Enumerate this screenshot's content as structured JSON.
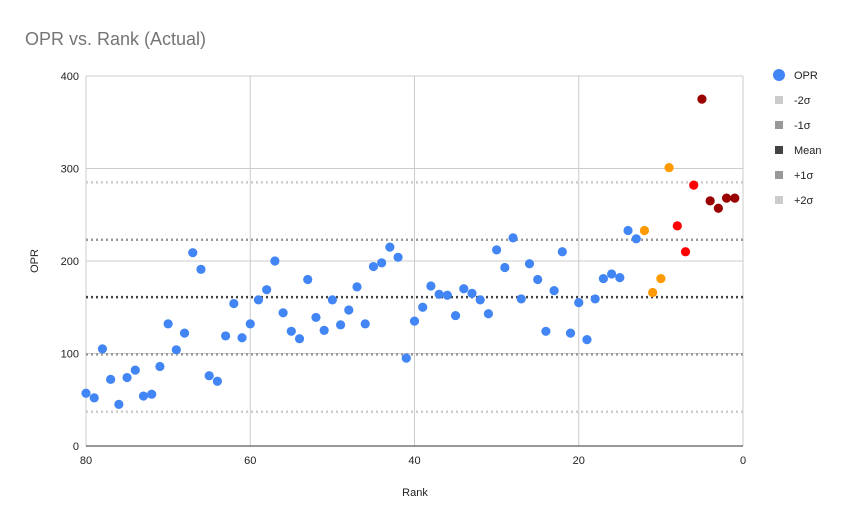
{
  "chart_data": {
    "type": "scatter",
    "title": "OPR vs. Rank (Actual)",
    "xlabel": "Rank",
    "ylabel": "OPR",
    "xlim": [
      80,
      0
    ],
    "ylim": [
      0,
      400
    ],
    "x_ticks": [
      "80",
      "60",
      "40",
      "20",
      "0"
    ],
    "x_tick_values": [
      80,
      60,
      40,
      20,
      0
    ],
    "y_ticks": [
      "0",
      "100",
      "200",
      "300",
      "400"
    ],
    "y_tick_values": [
      0,
      100,
      200,
      300,
      400
    ],
    "grid": true,
    "legend_position": "right",
    "series": [
      {
        "name": "OPR",
        "color": "#4285f4",
        "points": [
          [
            80,
            57
          ],
          [
            79,
            52
          ],
          [
            78,
            105
          ],
          [
            77,
            72
          ],
          [
            76,
            45
          ],
          [
            75,
            74
          ],
          [
            74,
            82
          ],
          [
            73,
            54
          ],
          [
            72,
            56
          ],
          [
            71,
            86
          ],
          [
            70,
            132
          ],
          [
            69,
            104
          ],
          [
            68,
            122
          ],
          [
            67,
            209
          ],
          [
            66,
            191
          ],
          [
            65,
            76
          ],
          [
            64,
            70
          ],
          [
            63,
            119
          ],
          [
            62,
            154
          ],
          [
            61,
            117
          ],
          [
            60,
            132
          ],
          [
            59,
            158
          ],
          [
            58,
            169
          ],
          [
            57,
            200
          ],
          [
            56,
            144
          ],
          [
            55,
            124
          ],
          [
            54,
            116
          ],
          [
            53,
            180
          ],
          [
            52,
            139
          ],
          [
            51,
            125
          ],
          [
            50,
            158
          ],
          [
            49,
            131
          ],
          [
            48,
            147
          ],
          [
            47,
            172
          ],
          [
            46,
            132
          ],
          [
            45,
            194
          ],
          [
            44,
            198
          ],
          [
            43,
            215
          ],
          [
            42,
            204
          ],
          [
            41,
            95
          ],
          [
            40,
            135
          ],
          [
            39,
            150
          ],
          [
            38,
            173
          ],
          [
            37,
            164
          ],
          [
            36,
            163
          ],
          [
            35,
            141
          ],
          [
            34,
            170
          ],
          [
            33,
            165
          ],
          [
            32,
            158
          ],
          [
            31,
            143
          ],
          [
            30,
            212
          ],
          [
            29,
            193
          ],
          [
            28,
            225
          ],
          [
            27,
            159
          ],
          [
            26,
            197
          ],
          [
            25,
            180
          ],
          [
            24,
            124
          ],
          [
            23,
            168
          ],
          [
            22,
            210
          ],
          [
            21,
            122
          ],
          [
            20,
            155
          ],
          [
            19,
            115
          ],
          [
            18,
            159
          ],
          [
            17,
            181
          ],
          [
            16,
            186
          ],
          [
            15,
            182
          ],
          [
            14,
            233
          ],
          [
            13,
            224
          ]
        ]
      },
      {
        "name": "",
        "color": "#ff9900",
        "points": [
          [
            12,
            233
          ],
          [
            11,
            166
          ],
          [
            10,
            181
          ],
          [
            9,
            301
          ]
        ]
      },
      {
        "name": "",
        "color": "#ff0000",
        "points": [
          [
            8,
            238
          ],
          [
            7,
            210
          ],
          [
            6,
            282
          ]
        ]
      },
      {
        "name": "",
        "color": "#990000",
        "points": [
          [
            5,
            375
          ],
          [
            4,
            265
          ],
          [
            3,
            257
          ],
          [
            2,
            268
          ],
          [
            1,
            268
          ]
        ]
      }
    ],
    "reference_lines": [
      {
        "name": "-2σ",
        "value": 37,
        "color": "#cccccc"
      },
      {
        "name": "-1σ",
        "value": 99,
        "color": "#999999"
      },
      {
        "name": "Mean",
        "value": 161,
        "color": "#434343"
      },
      {
        "name": "+1σ",
        "value": 223,
        "color": "#999999"
      },
      {
        "name": "+2σ",
        "value": 285,
        "color": "#cccccc"
      }
    ],
    "legend": [
      {
        "label": "OPR",
        "color": "#4285f4",
        "marker": "circle"
      },
      {
        "label": "-2σ",
        "color": "#cccccc",
        "marker": "square"
      },
      {
        "label": "-1σ",
        "color": "#999999",
        "marker": "square"
      },
      {
        "label": "Mean",
        "color": "#434343",
        "marker": "square"
      },
      {
        "label": "+1σ",
        "color": "#999999",
        "marker": "square"
      },
      {
        "label": "+2σ",
        "color": "#cccccc",
        "marker": "square"
      }
    ]
  }
}
